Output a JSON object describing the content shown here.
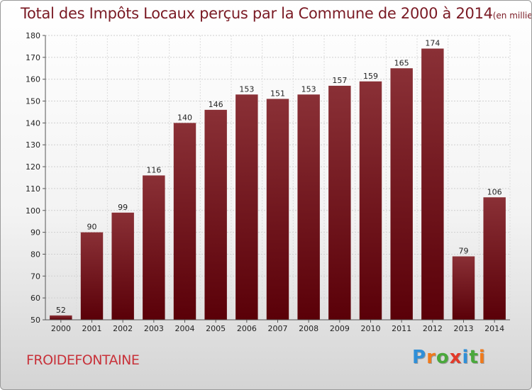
{
  "title": "Total des Impôts Locaux perçus par la Commune de 2000 à 2014",
  "title_unit": "(en milliers d'€)",
  "commune": "FROIDEFONTAINE",
  "logo": {
    "letters": [
      "P",
      "r",
      "o",
      "x",
      "i",
      "t",
      "i"
    ],
    "colors": [
      "#2f8fd8",
      "#f07a1c",
      "#4aa83c",
      "#e23a2a",
      "#2f8fd8",
      "#4aa83c",
      "#f07a1c"
    ]
  },
  "colors": {
    "bar_top": "#8a3036",
    "bar_bottom": "#5a0008",
    "text": "#222222",
    "title": "#7a1a24"
  },
  "chart_data": {
    "type": "bar",
    "title": "Total des Impôts Locaux perçus par la Commune de 2000 à 2014",
    "unit": "(en milliers d'€)",
    "categories": [
      "2000",
      "2001",
      "2002",
      "2003",
      "2004",
      "2005",
      "2006",
      "2007",
      "2008",
      "2009",
      "2010",
      "2011",
      "2012",
      "2013",
      "2014"
    ],
    "values": [
      52,
      90,
      99,
      116,
      140,
      146,
      153,
      151,
      153,
      157,
      159,
      165,
      174,
      79,
      106
    ],
    "ylim": [
      50,
      180
    ],
    "yticks": [
      50,
      60,
      70,
      80,
      90,
      100,
      110,
      120,
      130,
      140,
      150,
      160,
      170,
      180
    ],
    "grid": true,
    "legend": "none"
  }
}
